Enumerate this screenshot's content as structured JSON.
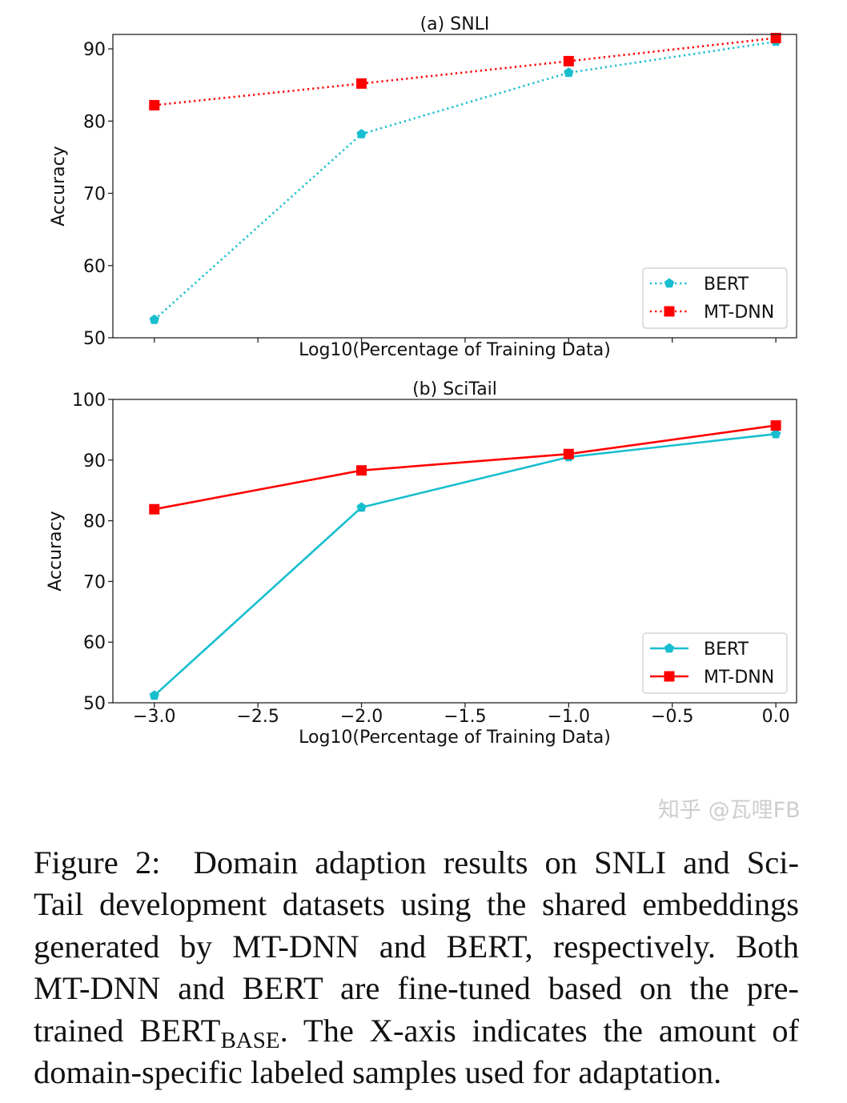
{
  "chart_data": [
    {
      "type": "line",
      "title": "(a) SNLI",
      "xlabel": "Log10(Percentage of Training Data)",
      "ylabel": "Accuracy",
      "x": [
        -3.0,
        -2.0,
        -1.0,
        0.0
      ],
      "xlim": [
        -3.2,
        0.1
      ],
      "ylim": [
        50,
        92
      ],
      "yticks": [
        "50",
        "60",
        "70",
        "80",
        "90"
      ],
      "yticks_values": [
        50,
        60,
        70,
        80,
        90
      ],
      "xtick_labels_shown": false,
      "line_style": "dotted",
      "grid": false,
      "legend_position": "bottom-right",
      "series": [
        {
          "name": "BERT",
          "values": [
            52.5,
            78.2,
            86.7,
            91.0
          ],
          "color": "#17becf",
          "marker": "pentagon"
        },
        {
          "name": "MT-DNN",
          "values": [
            82.2,
            85.2,
            88.3,
            91.5
          ],
          "color": "#ff0000",
          "marker": "square"
        }
      ]
    },
    {
      "type": "line",
      "title": "(b) SciTail",
      "xlabel": "Log10(Percentage of Training Data)",
      "ylabel": "Accuracy",
      "x": [
        -3.0,
        -2.0,
        -1.0,
        0.0
      ],
      "xlim": [
        -3.2,
        0.1
      ],
      "ylim": [
        50,
        100
      ],
      "yticks": [
        "50",
        "60",
        "70",
        "80",
        "90",
        "100"
      ],
      "yticks_values": [
        50,
        60,
        70,
        80,
        90,
        100
      ],
      "xticks": [
        "−3.0",
        "−2.5",
        "−2.0",
        "−1.5",
        "−1.0",
        "−0.5",
        "0.0"
      ],
      "xticks_values": [
        -3.0,
        -2.5,
        -2.0,
        -1.5,
        -1.0,
        -0.5,
        0.0
      ],
      "line_style": "solid",
      "grid": false,
      "legend_position": "bottom-right",
      "series": [
        {
          "name": "BERT",
          "values": [
            51.2,
            82.2,
            90.5,
            94.3
          ],
          "color": "#17becf",
          "marker": "pentagon"
        },
        {
          "name": "MT-DNN",
          "values": [
            81.9,
            88.3,
            91.0,
            95.7
          ],
          "color": "#ff0000",
          "marker": "square"
        }
      ]
    }
  ],
  "caption": {
    "lines": [
      "Figure 2:  Domain adaption results on SNLI and Sci-",
      "Tail development datasets using the shared embeddings",
      "generated by MT-DNN and BERT, respectively.  Both",
      "MT-DNN and BERT are fine-tuned based on the pre-"
    ],
    "line5_before": "trained BERT",
    "line5_sub": "BASE",
    "line5_after": ". The X-axis indicates the amount of",
    "line6": "domain-specific labeled samples used for adaptation."
  },
  "watermark": "知乎 @瓦哩FB"
}
